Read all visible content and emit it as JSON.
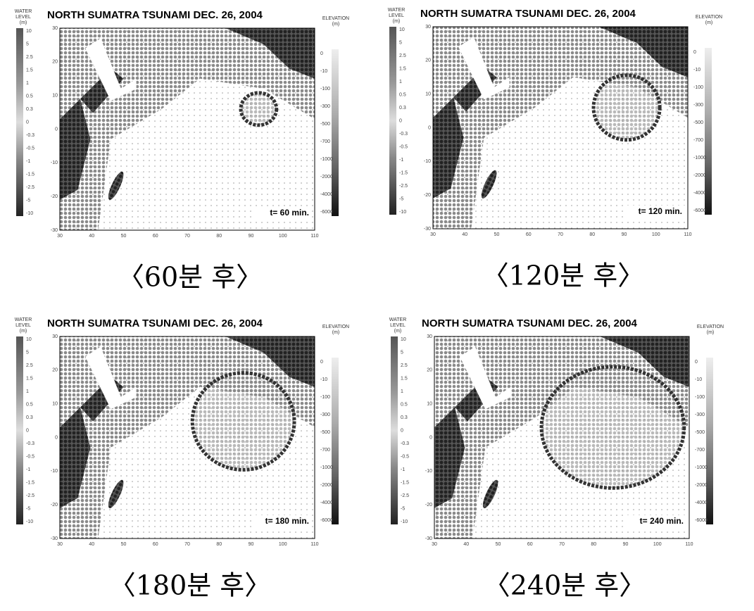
{
  "figure": {
    "title": "NORTH SUMATRA TSUNAMI  DEC. 26, 2004",
    "water_level_label": [
      "WATER",
      "LEVEL",
      "(m)"
    ],
    "elevation_label": [
      "ELEVATION",
      "(m)"
    ],
    "x_ticks": [
      "30",
      "40",
      "50",
      "60",
      "70",
      "80",
      "90",
      "100",
      "110"
    ],
    "y_ticks": [
      "30",
      "20",
      "10",
      "0",
      "-10",
      "-20",
      "-30"
    ],
    "water_level_ticks": [
      "10",
      "5",
      "2.5",
      "1.5",
      "1",
      "0.5",
      "0.3",
      "0",
      "-0.3",
      "-0.5",
      "-1",
      "-1.5",
      "-2.5",
      "-5",
      "-10"
    ],
    "elevation_ticks": [
      "0",
      "-10",
      "-100",
      "-300",
      "-500",
      "-700",
      "-1000",
      "-2000",
      "-4000",
      "-6000"
    ]
  },
  "panels": [
    {
      "time_label": "t= 60 min.",
      "caption": "〈60분 후〉"
    },
    {
      "time_label": "t= 120 min.",
      "caption": "〈120분 후〉"
    },
    {
      "time_label": "t= 180 min.",
      "caption": "〈180분 후〉"
    },
    {
      "time_label": "t= 240 min.",
      "caption": "〈240분 후〉"
    }
  ]
}
